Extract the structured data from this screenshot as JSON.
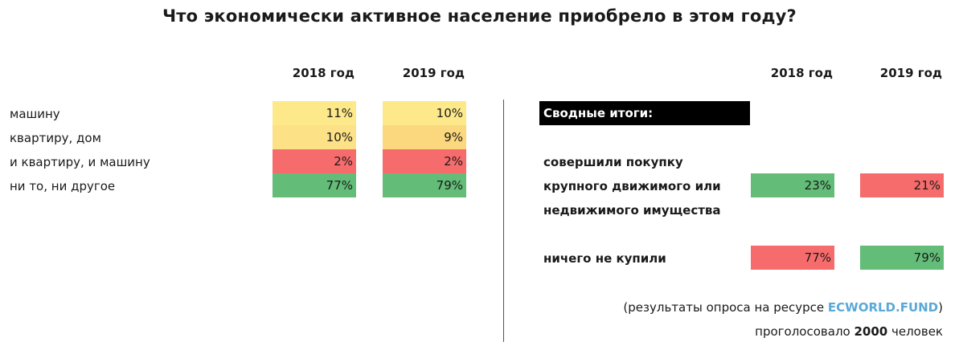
{
  "title": "Что экономически активное население приобрело в этом году?",
  "colors": {
    "yellow_light": "#fde98a",
    "yellow_mid": "#fde186",
    "yellow_deep": "#fbd77e",
    "red": "#f66c6c",
    "green": "#63bd78"
  },
  "chart_data": [
    {
      "type": "table",
      "columns": [
        "2018 год",
        "2019 год"
      ],
      "rows": [
        {
          "label": "машину",
          "values": [
            "11%",
            "10%"
          ],
          "numeric": [
            11,
            10
          ]
        },
        {
          "label": "квартиру, дом",
          "values": [
            "10%",
            "9%"
          ],
          "numeric": [
            10,
            9
          ]
        },
        {
          "label": "и квартиру, и машину",
          "values": [
            "2%",
            "2%"
          ],
          "numeric": [
            2,
            2
          ]
        },
        {
          "label": "ни то, ни другое",
          "values": [
            "77%",
            "79%"
          ],
          "numeric": [
            77,
            79
          ]
        }
      ]
    },
    {
      "type": "table",
      "header": "Сводные итоги:",
      "columns": [
        "2018 год",
        "2019 год"
      ],
      "rows": [
        {
          "label_lines": [
            "совершили покупку",
            "крупного движимого или",
            "недвижимого имущества"
          ],
          "values": [
            "23%",
            "21%"
          ],
          "numeric": [
            23,
            21
          ]
        },
        {
          "label_lines": [
            "ничего не купили"
          ],
          "values": [
            "77%",
            "79%"
          ],
          "numeric": [
            77,
            79
          ]
        }
      ]
    }
  ],
  "footer": {
    "source_prefix": "(результаты опроса на ресурсе ",
    "source_link": "ECWORLD.FUND",
    "source_suffix": ")",
    "votes_prefix": "проголосовало ",
    "votes_count": "2000",
    "votes_suffix": " человек"
  }
}
